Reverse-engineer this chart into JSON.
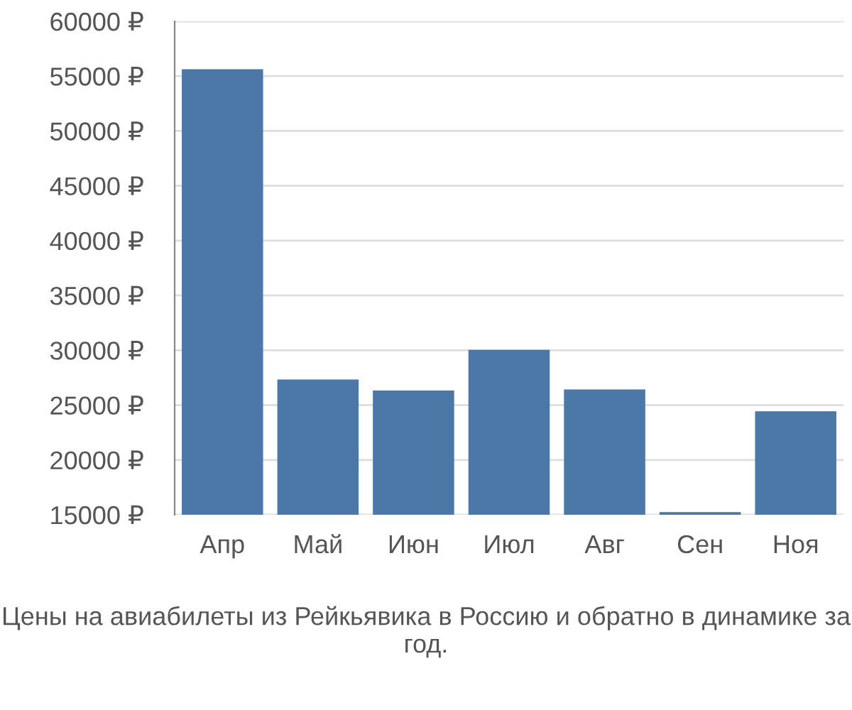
{
  "chart_data": {
    "type": "bar",
    "categories": [
      "Апр",
      "Май",
      "Июн",
      "Июл",
      "Авг",
      "Сен",
      "Ноя"
    ],
    "values": [
      55500,
      27200,
      26200,
      29900,
      26300,
      15100,
      24300
    ],
    "color": "#4c78a8",
    "ylim": [
      15000,
      60000
    ],
    "yticks": [
      {
        "value": 15000,
        "label": "15000 ₽"
      },
      {
        "value": 20000,
        "label": "20000 ₽"
      },
      {
        "value": 25000,
        "label": "25000 ₽"
      },
      {
        "value": 30000,
        "label": "30000 ₽"
      },
      {
        "value": 35000,
        "label": "35000 ₽"
      },
      {
        "value": 40000,
        "label": "40000 ₽"
      },
      {
        "value": 45000,
        "label": "45000 ₽"
      },
      {
        "value": 50000,
        "label": "50000 ₽"
      },
      {
        "value": 55000,
        "label": "55000 ₽"
      },
      {
        "value": 60000,
        "label": "60000 ₽"
      }
    ],
    "grid": "y",
    "annotations": [
      "Цены на авиабилеты из Рейкьявика в Россию и обратно в динамике за год."
    ]
  }
}
